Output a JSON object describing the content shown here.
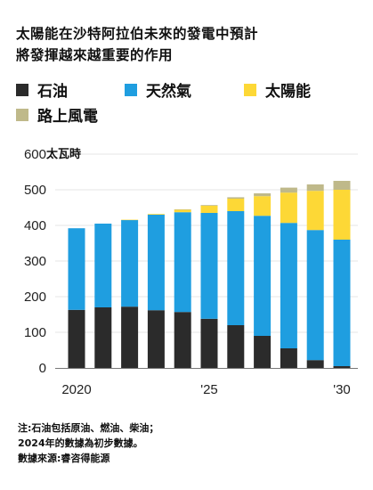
{
  "title_lines": [
    "太陽能在沙特阿拉伯未來的發電中預計",
    "將發揮越來越重要的作用"
  ],
  "notes": [
    "注:石油包括原油、燃油、柴油；",
    "2024年的數據為初步數據。",
    "數據來源:睿咨得能源"
  ],
  "colors": {
    "oil": "#2b2b2b",
    "gas": "#1f9ee0",
    "solar": "#fdd836",
    "wind": "#bfb98a"
  },
  "legend": [
    {
      "key": "oil",
      "label": "石油"
    },
    {
      "key": "gas",
      "label": "天然氣"
    },
    {
      "key": "solar",
      "label": "太陽能"
    },
    {
      "key": "wind",
      "label": "路上風電"
    }
  ],
  "chart_data": {
    "type": "bar",
    "stacked": true,
    "unit_label": "太瓦時",
    "categories": [
      "2020",
      "2021",
      "2022",
      "2023",
      "2024",
      "2025",
      "2026",
      "2027",
      "2028",
      "2029",
      "2030"
    ],
    "x_tick_labels": [
      "2020",
      "",
      "",
      "",
      "",
      "'25",
      "",
      "",
      "",
      "",
      "'30"
    ],
    "ylim": [
      0,
      600
    ],
    "yticks": [
      0,
      100,
      200,
      300,
      400,
      500,
      600
    ],
    "grid": true,
    "series": [
      {
        "key": "oil",
        "name": "石油",
        "values": [
          163,
          170,
          172,
          162,
          157,
          138,
          120,
          90,
          55,
          22,
          5
        ]
      },
      {
        "key": "gas",
        "name": "天然氣",
        "values": [
          229,
          235,
          243,
          268,
          280,
          297,
          320,
          337,
          352,
          365,
          355
        ]
      },
      {
        "key": "solar",
        "name": "太陽能",
        "values": [
          0,
          0,
          1,
          2,
          7,
          20,
          35,
          55,
          85,
          110,
          140
        ]
      },
      {
        "key": "wind",
        "name": "路上風電",
        "values": [
          0,
          0,
          0,
          0,
          1,
          2,
          4,
          8,
          14,
          18,
          25
        ]
      }
    ]
  }
}
